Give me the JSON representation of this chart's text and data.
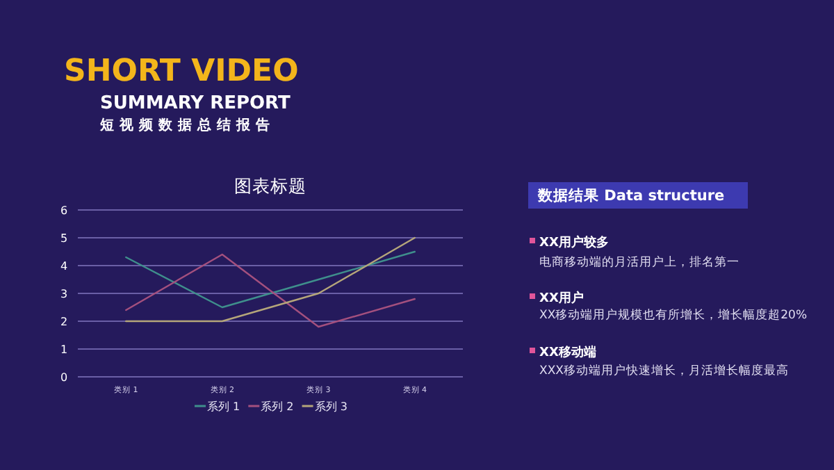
{
  "chart_data": {
    "type": "line",
    "title": "图表标题",
    "categories": [
      "类别 1",
      "类别 2",
      "类别 3",
      "类别 4"
    ],
    "series": [
      {
        "name": "系列 1",
        "color": "#3f8f8c",
        "values": [
          4.3,
          2.5,
          3.5,
          4.5
        ]
      },
      {
        "name": "系列 2",
        "color": "#a4507e",
        "values": [
          2.4,
          4.4,
          1.8,
          2.8
        ]
      },
      {
        "name": "系列 3",
        "color": "#b5a67a",
        "values": [
          2.0,
          2.0,
          3.0,
          5.0
        ]
      }
    ],
    "ylim": [
      0,
      6
    ],
    "yticks": [
      0,
      1,
      2,
      3,
      4,
      5,
      6
    ],
    "grid": "y",
    "legend": "bottom",
    "marker": "none",
    "line_style": "solid",
    "annotations": [
      "SHORT VIDEO",
      "SUMMARY REPORT",
      "短视频数据总结报告",
      "数据结果 Data structure",
      "XX用户较多",
      "电商移动端的月活用户上，排名第一",
      "XX用户",
      "XX移动端用户规模也有所增长，增长幅度超20%",
      "XX移动端",
      "XXX移动端用户快速增长，月活增长幅度最高"
    ]
  }
}
